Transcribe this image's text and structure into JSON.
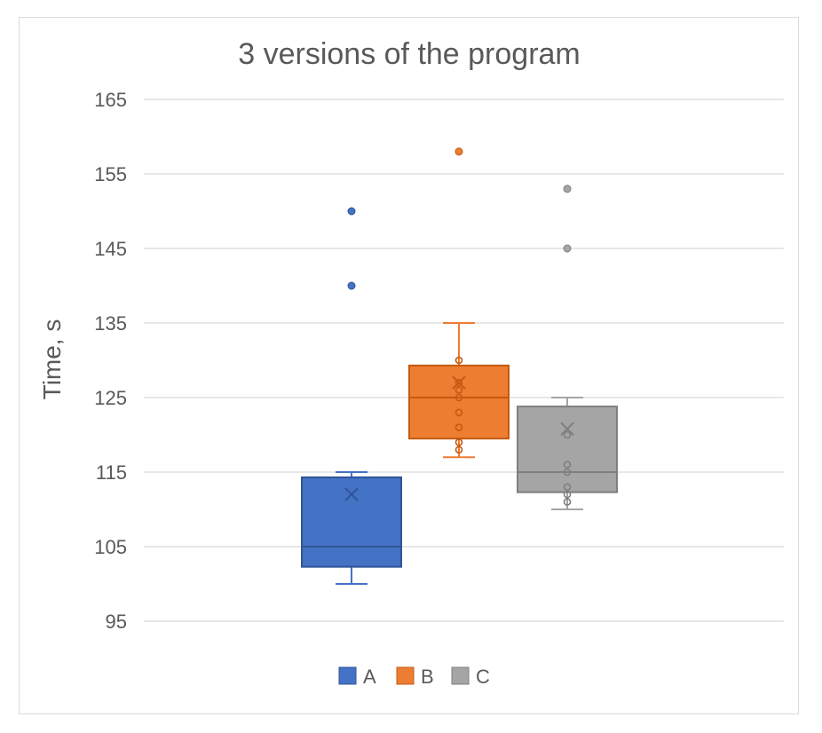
{
  "chart_data": {
    "type": "box",
    "title": "3 versions of the program",
    "xlabel": "",
    "ylabel": "Time, s",
    "ylim": [
      95,
      165
    ],
    "yticks": [
      95,
      105,
      115,
      125,
      135,
      145,
      155,
      165
    ],
    "grid": true,
    "legend_position": "bottom",
    "series": [
      {
        "name": "A",
        "color": "#4472c4",
        "whisker_low": 100,
        "q1": 102.3,
        "median": 105,
        "q3": 114.3,
        "whisker_high": 115,
        "mean": 112,
        "inner_points": [],
        "outliers": [
          140,
          150
        ]
      },
      {
        "name": "B",
        "color": "#ed7d31",
        "whisker_low": 117,
        "q1": 119.5,
        "median": 125,
        "q3": 129.3,
        "whisker_high": 135,
        "mean": 127,
        "inner_points": [
          118,
          119,
          121,
          123,
          125,
          126,
          127,
          130
        ],
        "outliers": [
          158
        ]
      },
      {
        "name": "C",
        "color": "#a5a5a5",
        "whisker_low": 110,
        "q1": 112.3,
        "median": 115,
        "q3": 123.8,
        "whisker_high": 125,
        "mean": 120.8,
        "inner_points": [
          111,
          112,
          113,
          115,
          116,
          120
        ],
        "outliers": [
          145,
          153
        ]
      }
    ]
  }
}
